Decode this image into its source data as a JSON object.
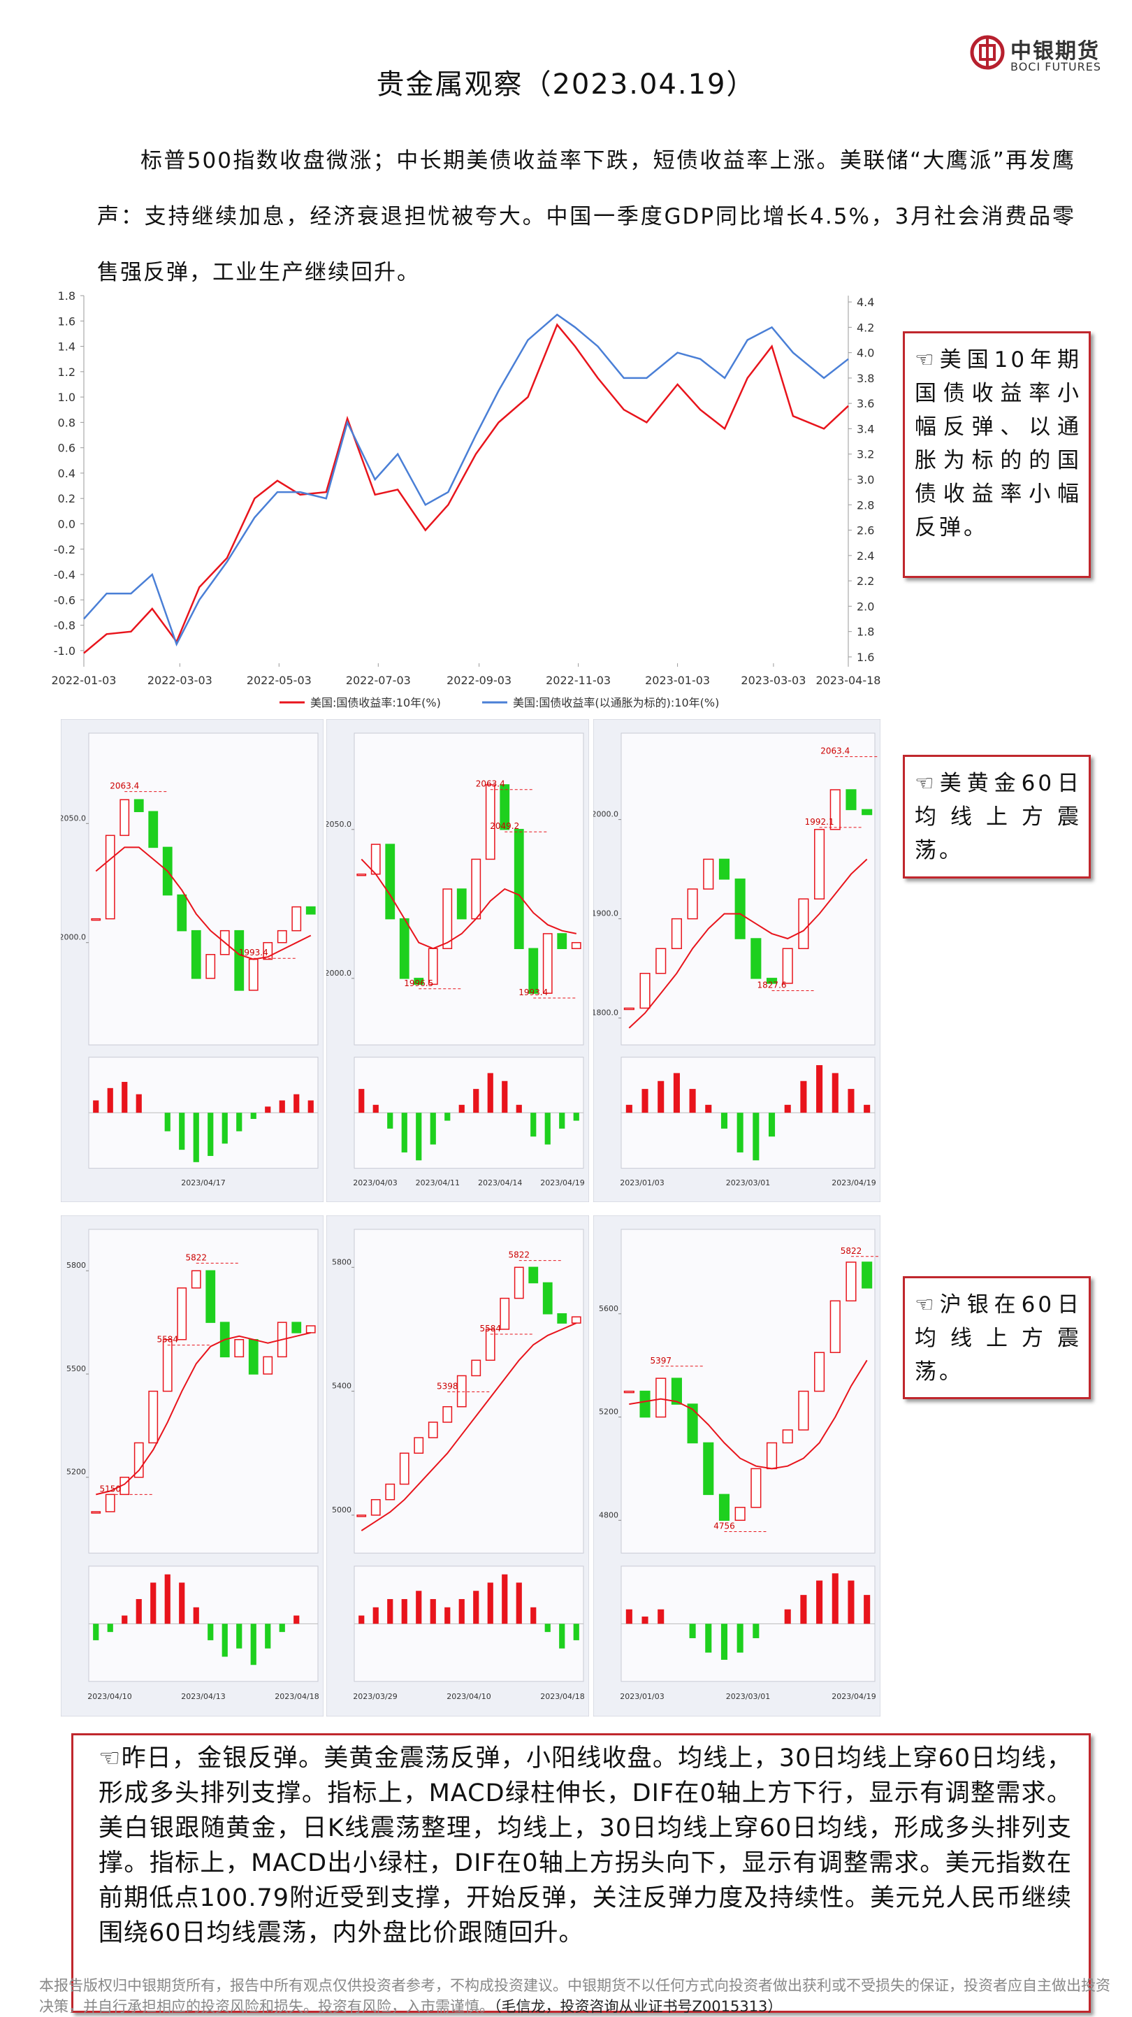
{
  "header": {
    "title": "贵金属观察（2023.04.19）",
    "logo": {
      "cn": "中银期货",
      "en": "BOCI FUTURES"
    }
  },
  "intro": "标普500指数收盘微涨；中长期美债收益率下跌，短债收益率上涨。美联储“大鹰派”再发鹰声：支持继续加息，经济衰退担忧被夸大。中国一季度GDP同比增长4.5%，3月社会消费品零售强反弹，工业生产继续回升。",
  "notes": [
    "☜美国10年期国债收益率小幅反弹、以通胀为标的的国债收益率小幅反弹。",
    "☜美黄金60日均线上方震荡。",
    "☜沪银在60日均线上方震荡。"
  ],
  "summary": "☜昨日，金银反弹。美黄金震荡反弹，小阳线收盘。均线上，30日均线上穿60日均线，形成多头排列支撑。指标上，MACD绿柱伸长，DIF在0轴上方下行，显示有调整需求。美白银跟随黄金，日K线震荡整理，均线上，30日均线上穿60日均线，形成多头排列支撑。指标上，MACD出小绿柱，DIF在0轴上方拐头向下，显示有调整需求。美元指数在前期低点100.79附近受到支撑，开始反弹，关注反弹力度及持续性。美元兑人民币继续围绕60日均线震荡，内外盘比价跟随回升。",
  "footer": {
    "disclaimer": "本报告版权归中银期货所有，报告中所有观点仅供投资者参考，不构成投资建议。中银期货不以任何方式向投资者做出获利或不受损失的保证，投资者应自主做出投资决策，并自行承担相应的投资风险和损失。投资有风险，入市需谨慎。",
    "author": "（毛信龙，投资咨询从业证书号Z0015313）"
  },
  "chart_data": [
    {
      "type": "line",
      "x": [
        "2022-01-03",
        "2022-01-17",
        "2022-02-01",
        "2022-02-14",
        "2022-03-01",
        "2022-03-15",
        "2022-04-01",
        "2022-04-18",
        "2022-05-02",
        "2022-05-16",
        "2022-06-01",
        "2022-06-14",
        "2022-07-01",
        "2022-07-15",
        "2022-08-01",
        "2022-08-15",
        "2022-09-01",
        "2022-09-15",
        "2022-10-03",
        "2022-10-21",
        "2022-11-01",
        "2022-11-15",
        "2022-12-01",
        "2022-12-15",
        "2023-01-03",
        "2023-01-17",
        "2023-02-01",
        "2023-02-15",
        "2023-03-02",
        "2023-03-15",
        "2023-04-03",
        "2023-04-18"
      ],
      "xlim": [
        "2022-01-03",
        "2023-04-18"
      ],
      "xticks": [
        "2022-01-03",
        "2022-03-03",
        "2022-05-03",
        "2022-07-03",
        "2022-09-03",
        "2022-11-03",
        "2023-01-03",
        "2023-03-03",
        "2023-04-18"
      ],
      "series": [
        {
          "name": "美国:国债收益率:10年(%)",
          "color": "#e8141c",
          "axis": "y2",
          "values": [
            1.63,
            1.78,
            1.8,
            1.98,
            1.72,
            2.15,
            2.38,
            2.85,
            2.99,
            2.88,
            2.9,
            3.48,
            2.88,
            2.92,
            2.6,
            2.8,
            3.2,
            3.45,
            3.65,
            4.22,
            4.05,
            3.8,
            3.55,
            3.45,
            3.75,
            3.55,
            3.4,
            3.8,
            4.05,
            3.5,
            3.4,
            3.58
          ]
        },
        {
          "name": "美国:国债收益率(以通胀为标的):10年(%)",
          "color": "#4a7fd6",
          "values": [
            -0.75,
            -0.55,
            -0.55,
            -0.4,
            -0.95,
            -0.6,
            -0.3,
            0.05,
            0.25,
            0.25,
            0.2,
            0.8,
            0.35,
            0.55,
            0.15,
            0.25,
            0.7,
            1.05,
            1.45,
            1.65,
            1.55,
            1.4,
            1.15,
            1.15,
            1.35,
            1.3,
            1.15,
            1.45,
            1.55,
            1.35,
            1.15,
            1.3
          ]
        }
      ],
      "ylim": [
        -1.1,
        1.8
      ],
      "yticks": [
        {
          "value": -1,
          "label": "-1.0"
        },
        {
          "value": -0.8,
          "label": "-0.8"
        },
        {
          "value": -0.6,
          "label": "-0.6"
        },
        {
          "value": -0.4,
          "label": "-0.4"
        },
        {
          "value": -0.2,
          "label": "-0.2"
        },
        {
          "value": 0,
          "label": "0.0"
        },
        {
          "value": 0.2,
          "label": "0.2"
        },
        {
          "value": 0.4,
          "label": "0.4"
        },
        {
          "value": 0.6,
          "label": "0.6"
        },
        {
          "value": 0.8,
          "label": "0.8"
        },
        {
          "value": 1,
          "label": "1.0"
        },
        {
          "value": 1.2,
          "label": "1.2"
        },
        {
          "value": 1.4,
          "label": "1.4"
        },
        {
          "value": 1.6,
          "label": "1.6"
        },
        {
          "value": 1.8,
          "label": "1.8"
        }
      ],
      "y2lim": [
        1.55,
        4.45
      ],
      "y2ticks": [
        {
          "value": 1.6,
          "label": "1.6"
        },
        {
          "value": 1.8,
          "label": "1.8"
        },
        {
          "value": 2,
          "label": "2.0"
        },
        {
          "value": 2.2,
          "label": "2.2"
        },
        {
          "value": 2.4,
          "label": "2.4"
        },
        {
          "value": 2.6,
          "label": "2.6"
        },
        {
          "value": 2.8,
          "label": "2.8"
        },
        {
          "value": 3,
          "label": "3.0"
        },
        {
          "value": 3.2,
          "label": "3.2"
        },
        {
          "value": 3.4,
          "label": "3.4"
        },
        {
          "value": 3.6,
          "label": "3.6"
        },
        {
          "value": 3.8,
          "label": "3.8"
        },
        {
          "value": 4,
          "label": "4.0"
        },
        {
          "value": 4.2,
          "label": "4.2"
        },
        {
          "value": 4.4,
          "label": "4.4"
        }
      ],
      "grid": false,
      "legend": "bottom"
    },
    {
      "type": "candlestick",
      "ylim": [
        1960,
        2085
      ],
      "yticks": [
        {
          "value": 2000,
          "label": "2000.0"
        },
        {
          "value": 2050,
          "label": "2050.0"
        }
      ],
      "close": [
        2010,
        2045,
        2060,
        2055,
        2040,
        2020,
        2005,
        1985,
        1995,
        2005,
        1980,
        1993,
        2000,
        2005,
        2015,
        2012
      ],
      "ma": [
        2030,
        2035,
        2040,
        2040,
        2035,
        2030,
        2022,
        2012,
        2005,
        2000,
        1995,
        1993,
        1994,
        1997,
        2000,
        2003
      ],
      "macd": [
        2,
        4,
        5,
        3,
        0,
        -3,
        -6,
        -8,
        -7,
        -5,
        -3,
        -1,
        1,
        2,
        3,
        2
      ],
      "macd_lim": [
        -9,
        9
      ],
      "marks": [
        2063.4,
        1993.4
      ],
      "dates": [
        "2023/04/17"
      ]
    },
    {
      "type": "candlestick",
      "ylim": [
        1980,
        2080
      ],
      "yticks": [
        {
          "value": 2000,
          "label": "2000.0"
        },
        {
          "value": 2050,
          "label": "2050.0"
        }
      ],
      "close": [
        2035,
        2045,
        2020,
        2000,
        1998,
        2010,
        2030,
        2020,
        2040,
        2065,
        2050,
        2010,
        1995,
        2015,
        2010,
        2012
      ],
      "ma": [
        2040,
        2035,
        2028,
        2020,
        2012,
        2010,
        2012,
        2015,
        2020,
        2026,
        2030,
        2028,
        2022,
        2018,
        2016,
        2015
      ],
      "macd": [
        3,
        1,
        -2,
        -5,
        -6,
        -4,
        -1,
        1,
        3,
        5,
        4,
        1,
        -3,
        -4,
        -2,
        -1
      ],
      "macd_lim": [
        -7,
        7
      ],
      "marks": [
        2049.2,
        1996.5,
        2063.4,
        1993.4
      ],
      "dates": [
        "2023/04/03",
        "2023/04/11",
        "2023/04/14",
        "2023/04/19"
      ]
    },
    {
      "type": "candlestick",
      "ylim": [
        1780,
        2080
      ],
      "yticks": [
        {
          "value": 1800,
          "label": "1800.0"
        },
        {
          "value": 1900,
          "label": "1900.0"
        },
        {
          "value": 2000,
          "label": "2000.0"
        }
      ],
      "close": [
        1810,
        1845,
        1870,
        1900,
        1930,
        1960,
        1940,
        1880,
        1840,
        1835,
        1870,
        1920,
        1990,
        2030,
        2010,
        2005
      ],
      "ma": [
        1790,
        1805,
        1825,
        1845,
        1870,
        1890,
        1905,
        1905,
        1895,
        1885,
        1880,
        1888,
        1905,
        1925,
        1945,
        1960
      ],
      "macd": [
        1,
        3,
        4,
        5,
        3,
        1,
        -2,
        -5,
        -6,
        -3,
        1,
        4,
        6,
        5,
        3,
        1
      ],
      "macd_lim": [
        -7,
        7
      ],
      "marks": [
        1992.1,
        1827.6,
        2063.4
      ],
      "dates": [
        "2023/01/03",
        "2023/03/01",
        "2023/04/19"
      ]
    },
    {
      "type": "candlestick",
      "ylim": [
        5000,
        5900
      ],
      "yticks": [
        5200,
        5500,
        5800
      ],
      "close": [
        5100,
        5150,
        5200,
        5300,
        5450,
        5600,
        5750,
        5800,
        5650,
        5550,
        5600,
        5500,
        5550,
        5650,
        5620,
        5640
      ],
      "ma": [
        5150,
        5160,
        5180,
        5220,
        5280,
        5360,
        5450,
        5530,
        5580,
        5600,
        5610,
        5600,
        5590,
        5600,
        5610,
        5620
      ],
      "macd": [
        -2,
        -1,
        1,
        3,
        5,
        6,
        5,
        2,
        -2,
        -4,
        -3,
        -5,
        -3,
        -1,
        1,
        0
      ],
      "macd_lim": [
        -7,
        7
      ],
      "marks": [
        5822,
        5584,
        5150
      ],
      "dates": [
        "2023/04/10",
        "2023/04/13",
        "2023/04/18"
      ]
    },
    {
      "type": "candlestick",
      "ylim": [
        4900,
        5900
      ],
      "yticks": [
        5000,
        5400,
        5800
      ],
      "close": [
        5000,
        5050,
        5100,
        5200,
        5250,
        5300,
        5350,
        5450,
        5500,
        5600,
        5700,
        5800,
        5750,
        5650,
        5620,
        5640
      ],
      "ma": [
        4950,
        4980,
        5010,
        5050,
        5100,
        5150,
        5200,
        5260,
        5320,
        5380,
        5440,
        5500,
        5550,
        5580,
        5600,
        5620
      ],
      "macd": [
        1,
        2,
        3,
        3,
        4,
        3,
        2,
        3,
        4,
        5,
        6,
        5,
        2,
        -1,
        -3,
        -2
      ],
      "macd_lim": [
        -7,
        7
      ],
      "marks": [
        5822,
        5584,
        5398
      ],
      "dates": [
        "2023/03/29",
        "2023/04/10",
        "2023/04/18"
      ]
    },
    {
      "type": "candlestick",
      "ylim": [
        4700,
        5900
      ],
      "yticks": [
        4800,
        5200,
        5600
      ],
      "close": [
        5300,
        5200,
        5350,
        5250,
        5100,
        4900,
        4800,
        4850,
        5000,
        5100,
        5150,
        5300,
        5450,
        5650,
        5800,
        5700
      ],
      "ma": [
        5250,
        5260,
        5270,
        5260,
        5230,
        5170,
        5100,
        5040,
        5010,
        5000,
        5010,
        5040,
        5100,
        5200,
        5320,
        5420
      ],
      "macd": [
        2,
        1,
        2,
        0,
        -2,
        -4,
        -5,
        -4,
        -2,
        0,
        2,
        4,
        6,
        7,
        6,
        4
      ],
      "macd_lim": [
        -8,
        8
      ],
      "marks": [
        5397,
        4756,
        5822
      ],
      "dates": [
        "2023/01/03",
        "2023/03/01",
        "2023/04/19"
      ]
    }
  ]
}
